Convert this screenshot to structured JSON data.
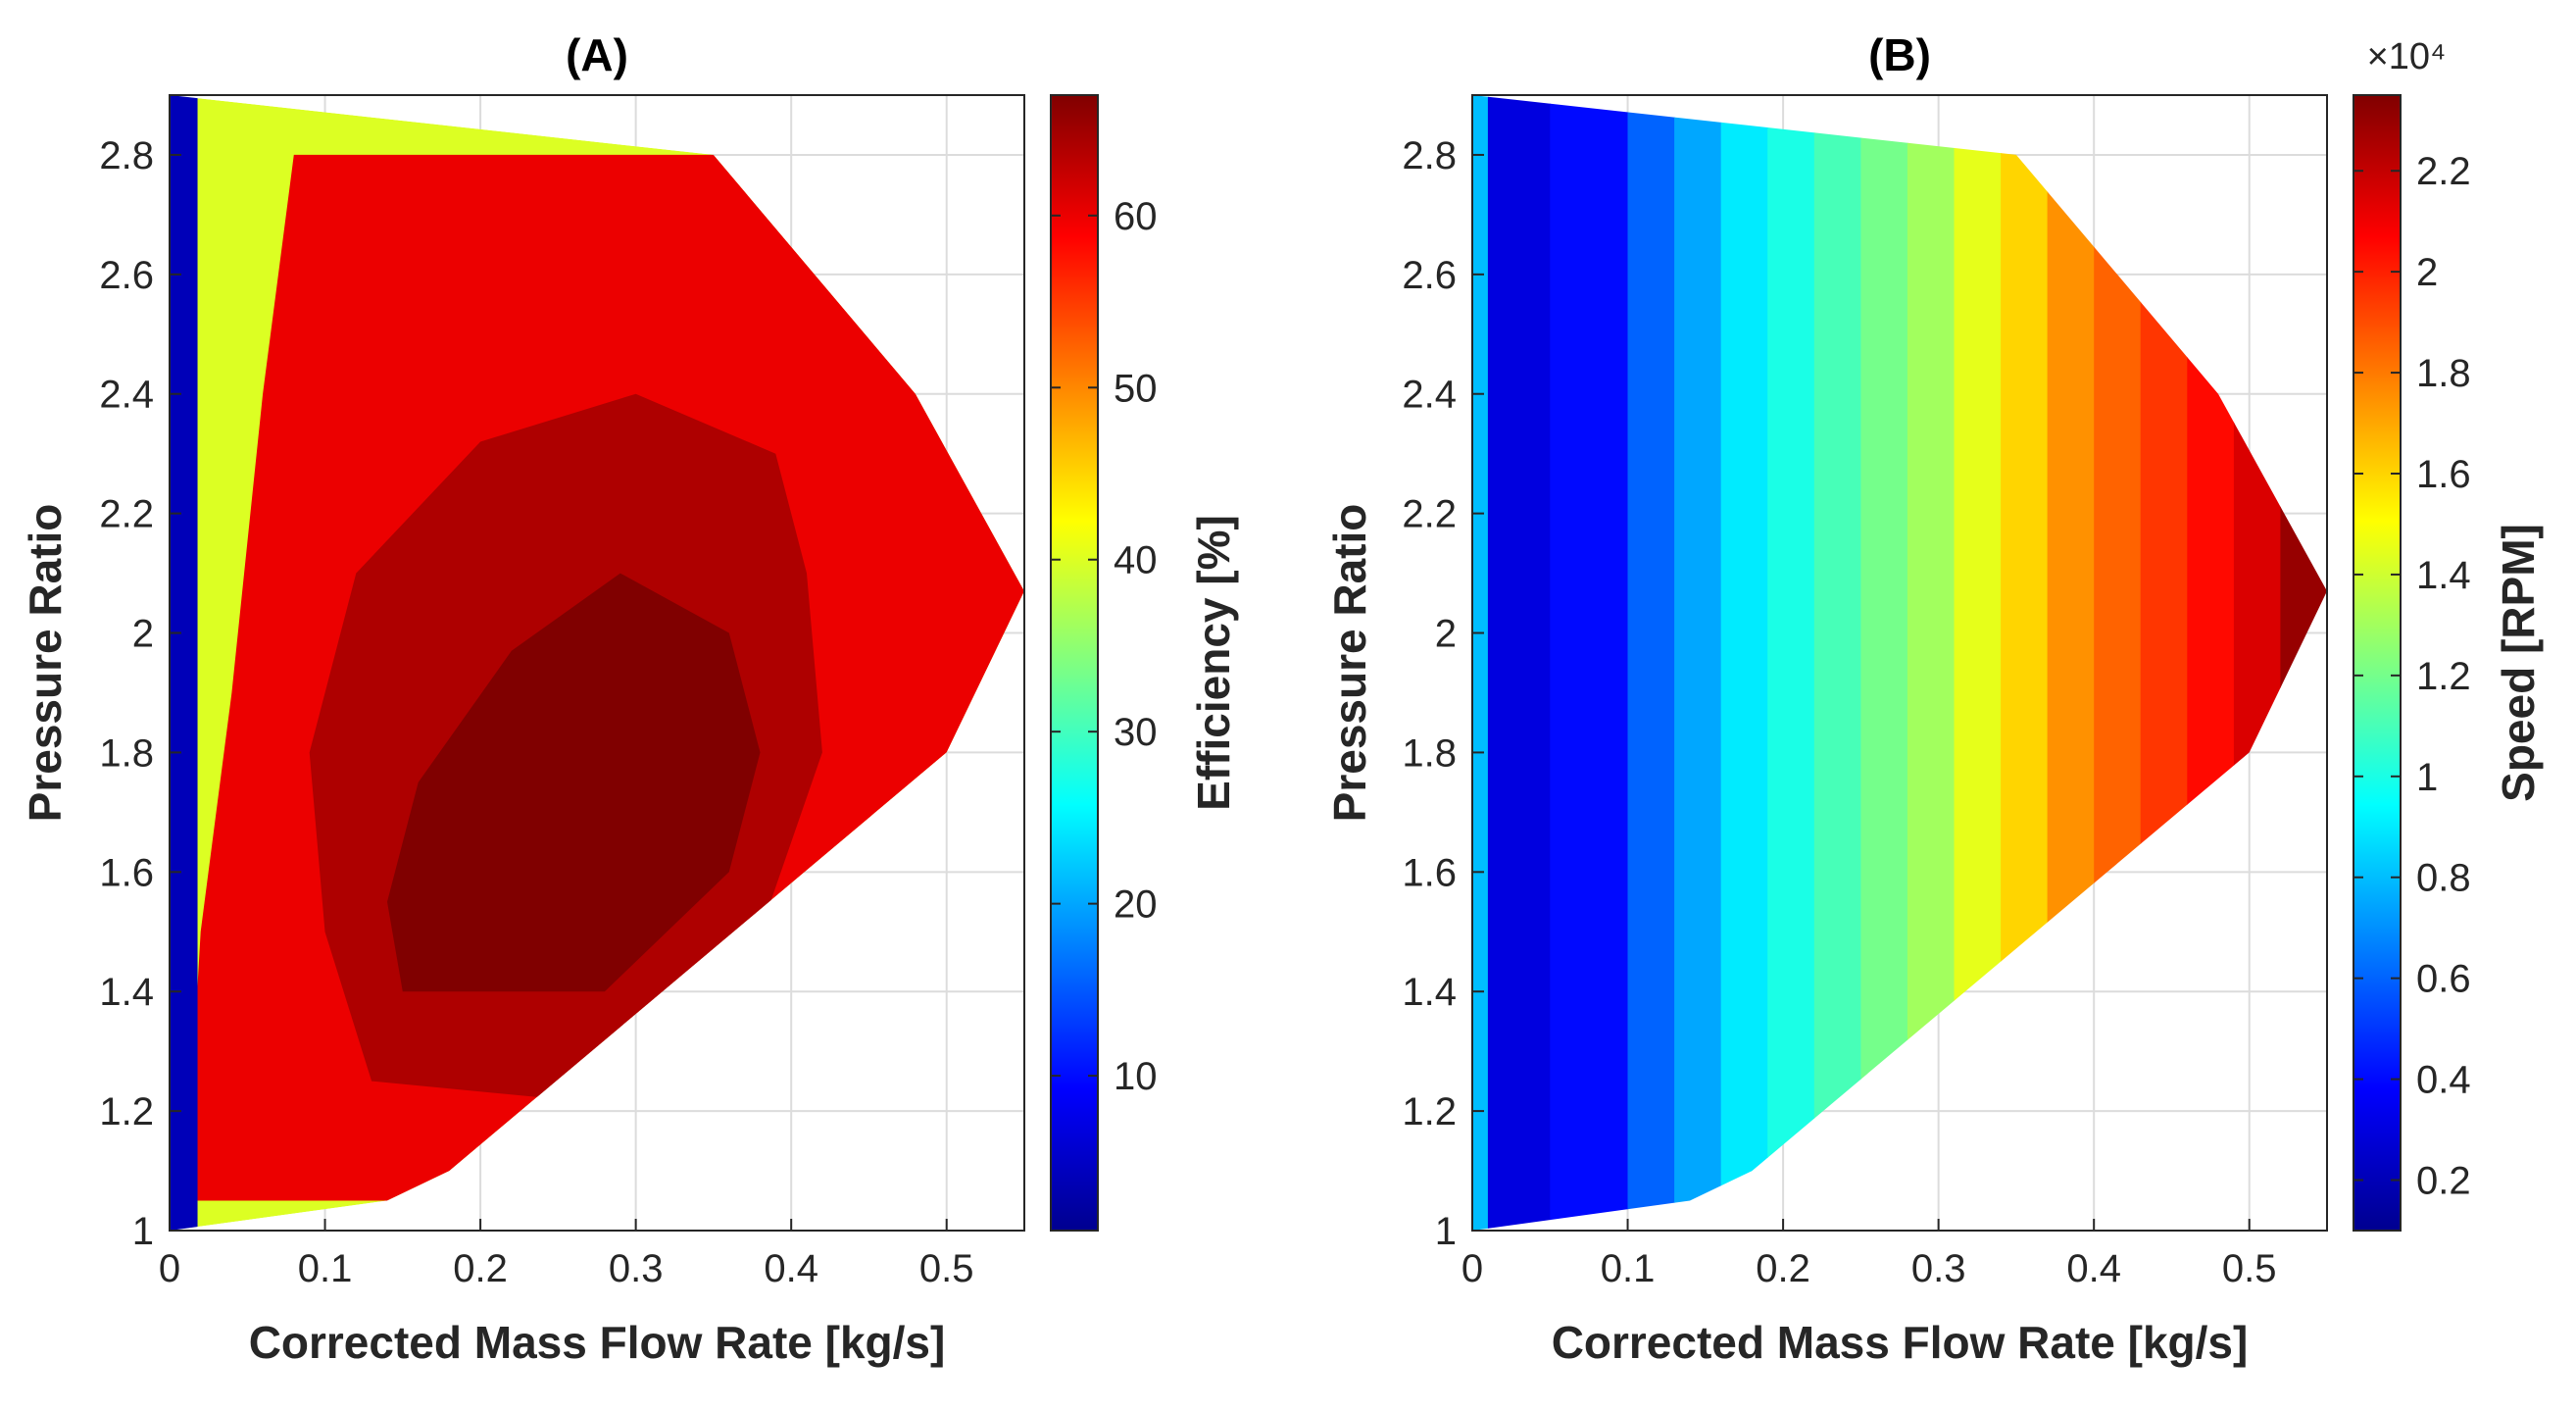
{
  "chart_data": [
    {
      "type": "heatmap",
      "subtype": "filled-contour",
      "title": "(A)",
      "xlabel": "Corrected Mass Flow Rate [kg/s]",
      "ylabel": "Pressure Ratio",
      "colorbar_label": "Efficiency [%]",
      "xlim": [
        0,
        0.55
      ],
      "ylim": [
        1,
        2.9
      ],
      "xticks": [
        0,
        0.1,
        0.2,
        0.3,
        0.4,
        0.5
      ],
      "xtick_labels": [
        "0",
        "0.1",
        "0.2",
        "0.3",
        "0.4",
        "0.5"
      ],
      "yticks": [
        1,
        1.2,
        1.4,
        1.6,
        1.8,
        2,
        2.2,
        2.4,
        2.6,
        2.8
      ],
      "ytick_labels": [
        "1",
        "1.2",
        "1.4",
        "1.6",
        "1.8",
        "2",
        "2.2",
        "2.4",
        "2.6",
        "2.8"
      ],
      "clim": [
        1,
        67
      ],
      "cticks": [
        10,
        20,
        30,
        40,
        50,
        60
      ],
      "ctick_labels": [
        "10",
        "20",
        "30",
        "40",
        "50",
        "60"
      ],
      "grid": true,
      "colormap": "jet",
      "map_boundary": [
        [
          0,
          1
        ],
        [
          0.14,
          1.05
        ],
        [
          0.18,
          1.1
        ],
        [
          0.5,
          1.8
        ],
        [
          0.55,
          2.07
        ],
        [
          0.48,
          2.4
        ],
        [
          0.35,
          2.8
        ],
        [
          0,
          2.9
        ]
      ],
      "regions": [
        {
          "level": 60,
          "polygon": [
            [
              0.01,
              1.05
            ],
            [
              0.14,
              1.05
            ],
            [
              0.18,
              1.1
            ],
            [
              0.5,
              1.8
            ],
            [
              0.55,
              2.07
            ],
            [
              0.48,
              2.4
            ],
            [
              0.35,
              2.8
            ],
            [
              0.08,
              2.8
            ],
            [
              0.06,
              2.4
            ],
            [
              0.04,
              1.9
            ],
            [
              0.02,
              1.5
            ]
          ]
        },
        {
          "level": 64,
          "polygon": [
            [
              0.13,
              1.25
            ],
            [
              0.25,
              1.22
            ],
            [
              0.38,
              1.5
            ],
            [
              0.42,
              1.8
            ],
            [
              0.41,
              2.1
            ],
            [
              0.39,
              2.3
            ],
            [
              0.3,
              2.4
            ],
            [
              0.2,
              2.32
            ],
            [
              0.12,
              2.1
            ],
            [
              0.09,
              1.8
            ],
            [
              0.1,
              1.5
            ]
          ]
        },
        {
          "level": 67,
          "polygon": [
            [
              0.15,
              1.4
            ],
            [
              0.28,
              1.4
            ],
            [
              0.36,
              1.6
            ],
            [
              0.38,
              1.8
            ],
            [
              0.36,
              2.0
            ],
            [
              0.29,
              2.1
            ],
            [
              0.22,
              1.97
            ],
            [
              0.16,
              1.75
            ],
            [
              0.14,
              1.55
            ]
          ]
        }
      ],
      "annotations": []
    },
    {
      "type": "heatmap",
      "subtype": "filled-contour",
      "title": "(B)",
      "xlabel": "Corrected Mass Flow Rate [kg/s]",
      "ylabel": "Pressure Ratio",
      "colorbar_label": "Speed [RPM]",
      "colorbar_multiplier": "×10⁴",
      "xlim": [
        0,
        0.55
      ],
      "ylim": [
        1,
        2.9
      ],
      "xticks": [
        0,
        0.1,
        0.2,
        0.3,
        0.4,
        0.5
      ],
      "xtick_labels": [
        "0",
        "0.1",
        "0.2",
        "0.3",
        "0.4",
        "0.5"
      ],
      "yticks": [
        1,
        1.2,
        1.4,
        1.6,
        1.8,
        2,
        2.2,
        2.4,
        2.6,
        2.8
      ],
      "ytick_labels": [
        "1",
        "1.2",
        "1.4",
        "1.6",
        "1.8",
        "2",
        "2.2",
        "2.4",
        "2.6",
        "2.8"
      ],
      "clim": [
        0.1,
        2.35
      ],
      "cticks": [
        0.2,
        0.4,
        0.6,
        0.8,
        1,
        1.2,
        1.4,
        1.6,
        1.8,
        2,
        2.2
      ],
      "ctick_labels": [
        "0.2",
        "0.4",
        "0.6",
        "0.8",
        "1",
        "1.2",
        "1.4",
        "1.6",
        "1.8",
        "2",
        "2.2"
      ],
      "grid": true,
      "colormap": "jet",
      "map_boundary": [
        [
          0,
          1
        ],
        [
          0.14,
          1.05
        ],
        [
          0.18,
          1.1
        ],
        [
          0.5,
          1.8
        ],
        [
          0.55,
          2.07
        ],
        [
          0.48,
          2.4
        ],
        [
          0.35,
          2.8
        ],
        [
          0,
          2.9
        ]
      ],
      "speed_bands": [
        {
          "x_start": 0.0,
          "value": 0.8
        },
        {
          "x_start": 0.01,
          "value": 0.3
        },
        {
          "x_start": 0.05,
          "value": 0.4
        },
        {
          "x_start": 0.1,
          "value": 0.6
        },
        {
          "x_start": 0.13,
          "value": 0.75
        },
        {
          "x_start": 0.16,
          "value": 0.9
        },
        {
          "x_start": 0.19,
          "value": 1.0
        },
        {
          "x_start": 0.22,
          "value": 1.1
        },
        {
          "x_start": 0.25,
          "value": 1.2
        },
        {
          "x_start": 0.28,
          "value": 1.3
        },
        {
          "x_start": 0.31,
          "value": 1.45
        },
        {
          "x_start": 0.34,
          "value": 1.6
        },
        {
          "x_start": 0.37,
          "value": 1.75
        },
        {
          "x_start": 0.4,
          "value": 1.85
        },
        {
          "x_start": 0.43,
          "value": 1.95
        },
        {
          "x_start": 0.46,
          "value": 2.05
        },
        {
          "x_start": 0.49,
          "value": 2.15
        },
        {
          "x_start": 0.52,
          "value": 2.3
        }
      ],
      "annotations": []
    }
  ]
}
